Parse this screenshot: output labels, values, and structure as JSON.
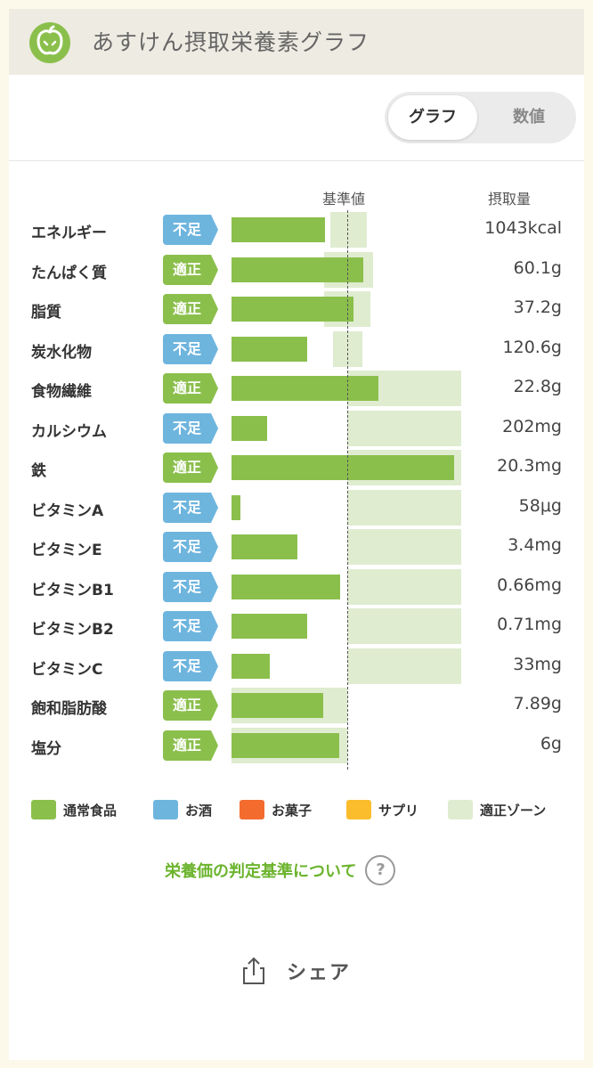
{
  "header": {
    "title": "あすけん摂取栄養素グラフ"
  },
  "toggle": {
    "graph_label": "グラフ",
    "number_label": "数値",
    "active": "graph"
  },
  "columns": {
    "reference": "基準値",
    "intake": "摂取量"
  },
  "nutrients": [
    {
      "name": "エネルギー",
      "status": "不足",
      "value": "1043kcal",
      "intake_pct": 81,
      "zone_low_pct": 85,
      "zone_high_pct": 117
    },
    {
      "name": "たんぱく質",
      "status": "適正",
      "value": "60.1g",
      "intake_pct": 114,
      "zone_low_pct": 80,
      "zone_high_pct": 122
    },
    {
      "name": "脂質",
      "status": "適正",
      "value": "37.2g",
      "intake_pct": 105,
      "zone_low_pct": 80,
      "zone_high_pct": 120
    },
    {
      "name": "炭水化物",
      "status": "不足",
      "value": "120.6g",
      "intake_pct": 65,
      "zone_low_pct": 88,
      "zone_high_pct": 113
    },
    {
      "name": "食物繊維",
      "status": "適正",
      "value": "22.8g",
      "intake_pct": 127,
      "zone_low_pct": 100,
      "zone_high_pct": 200
    },
    {
      "name": "カルシウム",
      "status": "不足",
      "value": "202mg",
      "intake_pct": 31,
      "zone_low_pct": 100,
      "zone_high_pct": 200
    },
    {
      "name": "鉄",
      "status": "適正",
      "value": "20.3mg",
      "intake_pct": 195,
      "zone_low_pct": 100,
      "zone_high_pct": 200
    },
    {
      "name": "ビタミンA",
      "status": "不足",
      "value": "58μg",
      "intake_pct": 8,
      "zone_low_pct": 100,
      "zone_high_pct": 200
    },
    {
      "name": "ビタミンE",
      "status": "不足",
      "value": "3.4mg",
      "intake_pct": 57,
      "zone_low_pct": 100,
      "zone_high_pct": 200
    },
    {
      "name": "ビタミンB1",
      "status": "不足",
      "value": "0.66mg",
      "intake_pct": 94,
      "zone_low_pct": 100,
      "zone_high_pct": 200
    },
    {
      "name": "ビタミンB2",
      "status": "不足",
      "value": "0.71mg",
      "intake_pct": 65,
      "zone_low_pct": 100,
      "zone_high_pct": 200
    },
    {
      "name": "ビタミンC",
      "status": "不足",
      "value": "33mg",
      "intake_pct": 33,
      "zone_low_pct": 100,
      "zone_high_pct": 200
    },
    {
      "name": "飽和脂肪酸",
      "status": "適正",
      "value": "7.89g",
      "intake_pct": 79,
      "zone_low_pct": 0,
      "zone_high_pct": 100
    },
    {
      "name": "塩分",
      "status": "適正",
      "value": "6g",
      "intake_pct": 93,
      "zone_low_pct": 0,
      "zone_high_pct": 100
    }
  ],
  "legend": [
    {
      "label": "通常食品",
      "color": "#8bbf4c"
    },
    {
      "label": "お酒",
      "color": "#6eb5de"
    },
    {
      "label": "お菓子",
      "color": "#f36b2d"
    },
    {
      "label": "サプリ",
      "color": "#fbbd2c"
    },
    {
      "label": "適正ゾーン",
      "color": "#dfecd0"
    }
  ],
  "colors": {
    "ok_badge": "#8bbf4c",
    "low_badge": "#6eb5de",
    "bar": "#8bbf4c",
    "zone": "#dfecd0",
    "link": "#6cb42e"
  },
  "criteria_link": "栄養価の判定基準について",
  "help_icon": "?",
  "share": {
    "label": "シェア"
  }
}
